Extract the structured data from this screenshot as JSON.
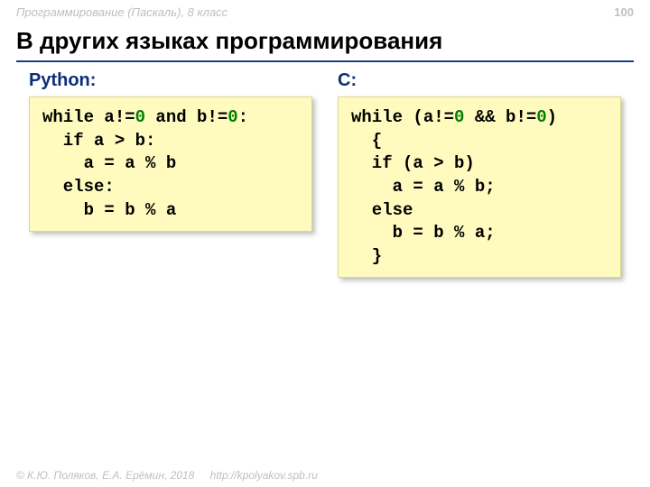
{
  "header": {
    "course": "Программирование (Паскаль), 8 класс",
    "page_number": "100"
  },
  "title": "В других языках программирования",
  "columns": {
    "left": {
      "label": "Python:",
      "code": "while a!=​0​ and b!=​0​:\n  if a > b:\n    a = a % b\n  else:\n    b = b % a"
    },
    "right": {
      "label": "С:",
      "code": "while (a!=​0​ && b!=​0​)\n  {\n  if (a > b)\n    a = a % b;\n  else\n    b = b % a;\n  }"
    }
  },
  "footer": {
    "copyright": "© К.Ю. Поляков, Е.А. Ерёмин, 2018",
    "url": "http://kpolyakov.spb.ru"
  },
  "styling": {
    "background_color": "#ffffff",
    "accent_color": "#1a3e8b",
    "code_bg": "#fffbbf",
    "code_shadow": "rgba(0,0,0,0.25)",
    "zero_color": "#008000",
    "muted_text": "#bfbfbf",
    "title_fontsize": 26,
    "label_fontsize": 20,
    "code_fontsize": 19
  }
}
